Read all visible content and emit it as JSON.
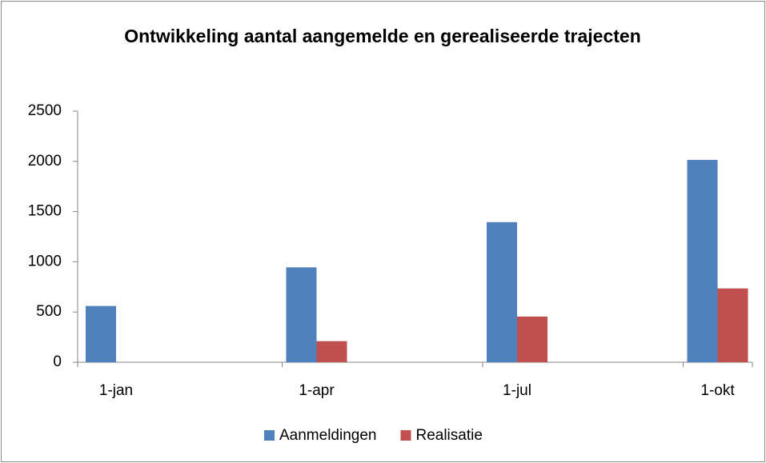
{
  "chart_data": {
    "type": "bar",
    "title": "Ontwikkeling aantal aangemelde en gerealiseerde trajecten",
    "categories": [
      "1-jan",
      "1-apr",
      "1-jul",
      "1-okt"
    ],
    "series": [
      {
        "name": "Aanmeldingen",
        "color": "#4f81bd",
        "values": [
          560,
          945,
          1395,
          2015
        ]
      },
      {
        "name": "Realisatie",
        "color": "#c0504d",
        "values": [
          0,
          210,
          455,
          735
        ]
      }
    ],
    "ylim": [
      0,
      2500
    ],
    "yticks": [
      0,
      500,
      1000,
      1500,
      2000,
      2500
    ],
    "legend": "bottom"
  }
}
